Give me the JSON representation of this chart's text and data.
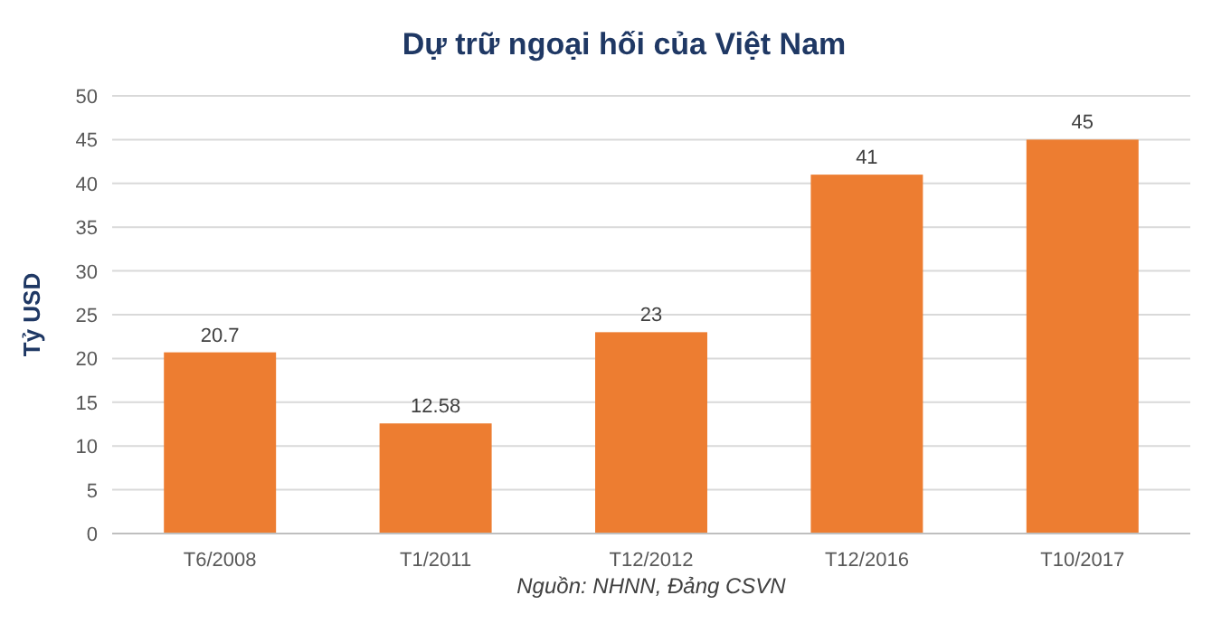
{
  "chart_data": {
    "type": "bar",
    "title": "Dự trữ ngoại hối của Việt Nam",
    "ylabel": "Tỷ USD",
    "categories": [
      "T6/2008",
      "T1/2011",
      "T12/2012",
      "T12/2016",
      "T10/2017"
    ],
    "values": [
      20.7,
      12.58,
      23,
      41,
      45
    ],
    "color": "#ed7d31",
    "ylim": [
      0,
      50
    ],
    "yticks": [
      0,
      5,
      10,
      15,
      20,
      25,
      30,
      35,
      40,
      45,
      50
    ],
    "grid": "y",
    "data_labels": true,
    "annotations": [
      "Nguồn: NHNN, Đảng CSVN"
    ]
  }
}
